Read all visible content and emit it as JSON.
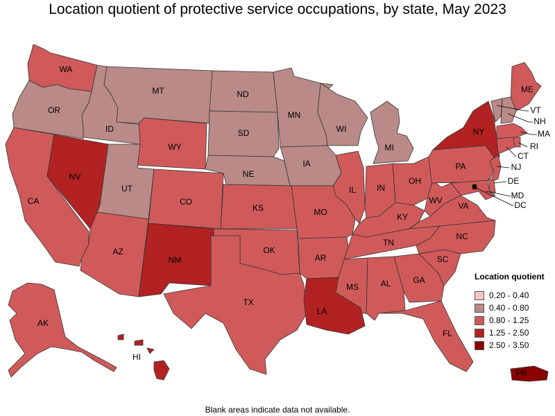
{
  "title": "Location quotient of protective service occupations, by state, May 2023",
  "note": "Blank areas indicate data not available.",
  "legend": {
    "title": "Location quotient",
    "items": [
      {
        "label": "0.20 - 0.40",
        "color": "#f7c4c4"
      },
      {
        "label": "0.40 - 0.80",
        "color": "#b98a87"
      },
      {
        "label": "0.80 - 1.25",
        "color": "#d05a5a"
      },
      {
        "label": "1.25 - 2.50",
        "color": "#b22222"
      },
      {
        "label": "2.50 - 3.50",
        "color": "#8b0000"
      }
    ]
  },
  "states": [
    {
      "abbr": "WA",
      "cls": 2
    },
    {
      "abbr": "OR",
      "cls": 1
    },
    {
      "abbr": "CA",
      "cls": 2
    },
    {
      "abbr": "NV",
      "cls": 3
    },
    {
      "abbr": "ID",
      "cls": 1
    },
    {
      "abbr": "MT",
      "cls": 1
    },
    {
      "abbr": "WY",
      "cls": 2
    },
    {
      "abbr": "UT",
      "cls": 1
    },
    {
      "abbr": "AZ",
      "cls": 2
    },
    {
      "abbr": "CO",
      "cls": 2
    },
    {
      "abbr": "NM",
      "cls": 3
    },
    {
      "abbr": "ND",
      "cls": 1
    },
    {
      "abbr": "SD",
      "cls": 1
    },
    {
      "abbr": "NE",
      "cls": 1
    },
    {
      "abbr": "KS",
      "cls": 2
    },
    {
      "abbr": "OK",
      "cls": 2
    },
    {
      "abbr": "TX",
      "cls": 2
    },
    {
      "abbr": "MN",
      "cls": 1
    },
    {
      "abbr": "IA",
      "cls": 1
    },
    {
      "abbr": "MO",
      "cls": 2
    },
    {
      "abbr": "AR",
      "cls": 2
    },
    {
      "abbr": "LA",
      "cls": 3
    },
    {
      "abbr": "WI",
      "cls": 1
    },
    {
      "abbr": "IL",
      "cls": 2
    },
    {
      "abbr": "MI",
      "cls": 1
    },
    {
      "abbr": "IN",
      "cls": 2
    },
    {
      "abbr": "OH",
      "cls": 2
    },
    {
      "abbr": "KY",
      "cls": 2
    },
    {
      "abbr": "TN",
      "cls": 2
    },
    {
      "abbr": "MS",
      "cls": 2
    },
    {
      "abbr": "AL",
      "cls": 2
    },
    {
      "abbr": "GA",
      "cls": 2
    },
    {
      "abbr": "FL",
      "cls": 2
    },
    {
      "abbr": "SC",
      "cls": 2
    },
    {
      "abbr": "NC",
      "cls": 2
    },
    {
      "abbr": "VA",
      "cls": 2
    },
    {
      "abbr": "WV",
      "cls": 2
    },
    {
      "abbr": "PA",
      "cls": 2
    },
    {
      "abbr": "NY",
      "cls": 3
    },
    {
      "abbr": "ME",
      "cls": 2
    },
    {
      "abbr": "VT",
      "cls": 1
    },
    {
      "abbr": "NH",
      "cls": 1
    },
    {
      "abbr": "MA",
      "cls": 2
    },
    {
      "abbr": "RI",
      "cls": 2
    },
    {
      "abbr": "CT",
      "cls": 2
    },
    {
      "abbr": "NJ",
      "cls": 2
    },
    {
      "abbr": "DE",
      "cls": 2
    },
    {
      "abbr": "MD",
      "cls": 2
    },
    {
      "abbr": "DC",
      "cls": 4
    },
    {
      "abbr": "AK",
      "cls": 2
    },
    {
      "abbr": "HI",
      "cls": 3
    },
    {
      "abbr": "PR",
      "cls": 4
    }
  ]
}
